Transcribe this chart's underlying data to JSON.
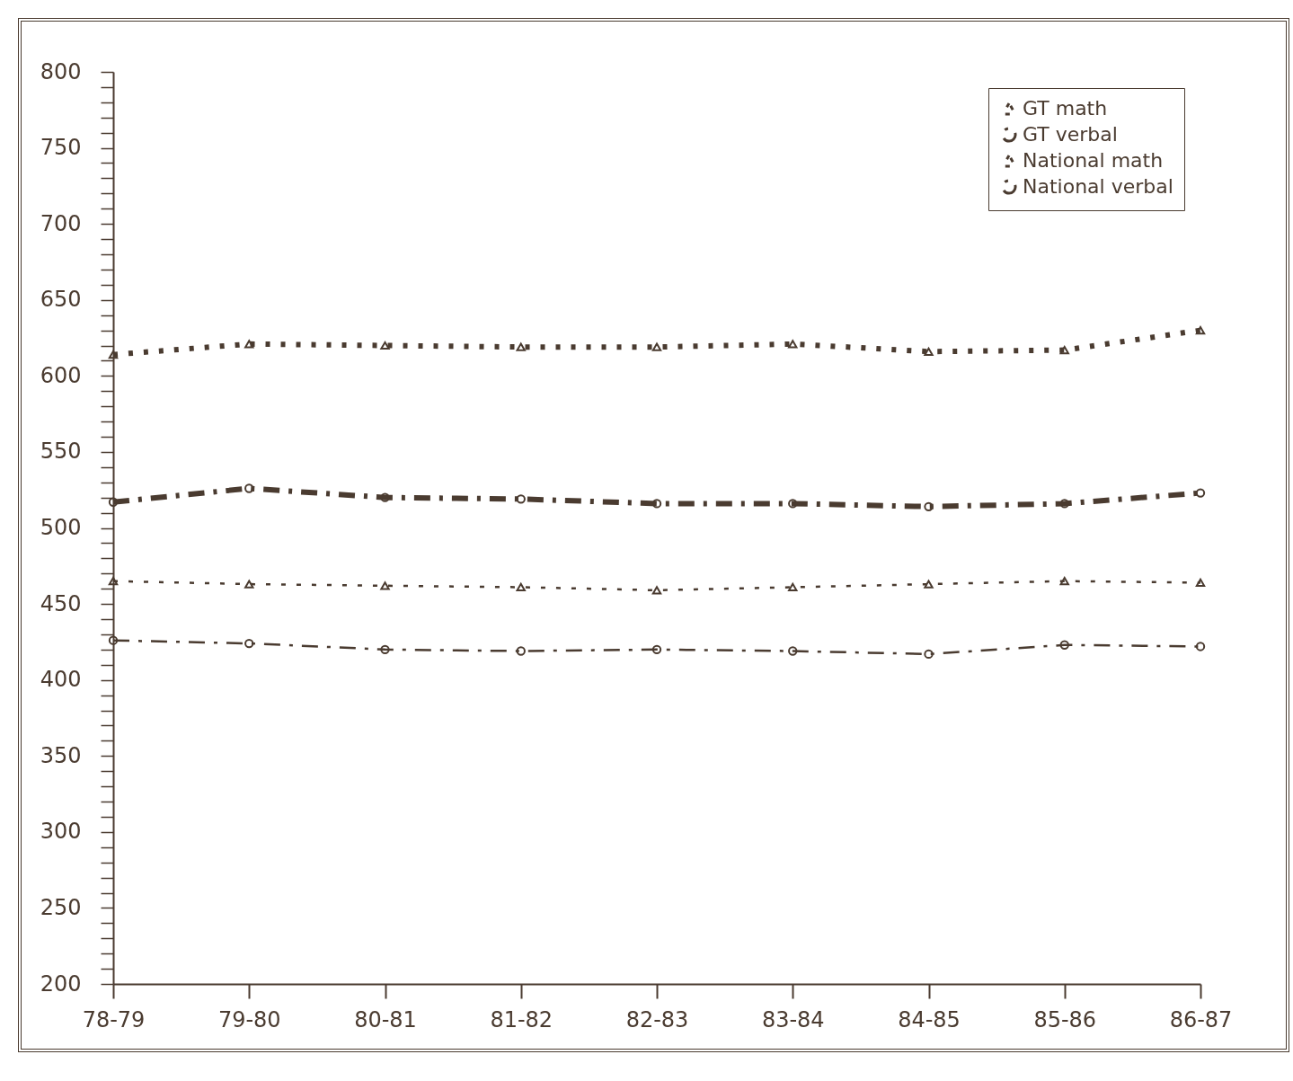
{
  "chart_data": {
    "type": "line",
    "categories": [
      "78-79",
      "79-80",
      "80-81",
      "81-82",
      "82-83",
      "83-84",
      "84-85",
      "85-86",
      "86-87"
    ],
    "series": [
      {
        "name": "GT math",
        "color": "#4a3b30",
        "line_style": "dotted",
        "marker": "triangle",
        "values": [
          614,
          621,
          620,
          619,
          619,
          621,
          616,
          617,
          630
        ]
      },
      {
        "name": "GT verbal",
        "color": "#4a3b30",
        "line_style": "dashed",
        "marker": "circle",
        "values": [
          517,
          526,
          520,
          519,
          516,
          516,
          514,
          516,
          523
        ]
      },
      {
        "name": "National math",
        "color": "#4a3b30",
        "line_style": "dotted",
        "marker": "triangle",
        "values": [
          465,
          463,
          462,
          461,
          459,
          461,
          463,
          465,
          464
        ]
      },
      {
        "name": "National verbal",
        "color": "#4a3b30",
        "line_style": "dashed",
        "marker": "circle",
        "values": [
          426,
          424,
          420,
          419,
          420,
          419,
          417,
          423,
          422
        ]
      }
    ],
    "ylim": [
      200,
      800
    ],
    "yticks": [
      200,
      {
        "value": 210,
        "label": null
      },
      {
        "value": 220,
        "label": null
      },
      {
        "value": 230,
        "label": null
      },
      {
        "value": 240,
        "label": null
      },
      250,
      {
        "value": 260,
        "label": null
      },
      {
        "value": 270,
        "label": null
      },
      {
        "value": 280,
        "label": null
      },
      {
        "value": 290,
        "label": null
      },
      300,
      {
        "value": 310,
        "label": null
      },
      {
        "value": 320,
        "label": null
      },
      {
        "value": 330,
        "label": null
      },
      {
        "value": 340,
        "label": null
      },
      350,
      {
        "value": 360,
        "label": null
      },
      {
        "value": 370,
        "label": null
      },
      {
        "value": 380,
        "label": null
      },
      {
        "value": 390,
        "label": null
      },
      400,
      {
        "value": 410,
        "label": null
      },
      {
        "value": 420,
        "label": null
      },
      {
        "value": 430,
        "label": null
      },
      {
        "value": 440,
        "label": null
      },
      450,
      {
        "value": 460,
        "label": null
      },
      {
        "value": 470,
        "label": null
      },
      {
        "value": 480,
        "label": null
      },
      {
        "value": 490,
        "label": null
      },
      500,
      {
        "value": 510,
        "label": null
      },
      {
        "value": 520,
        "label": null
      },
      {
        "value": 530,
        "label": null
      },
      {
        "value": 540,
        "label": null
      },
      550,
      {
        "value": 560,
        "label": null
      },
      {
        "value": 570,
        "label": null
      },
      {
        "value": 580,
        "label": null
      },
      {
        "value": 590,
        "label": null
      },
      600,
      {
        "value": 610,
        "label": null
      },
      {
        "value": 620,
        "label": null
      },
      {
        "value": 630,
        "label": null
      },
      {
        "value": 640,
        "label": null
      },
      650,
      {
        "value": 660,
        "label": null
      },
      {
        "value": 670,
        "label": null
      },
      {
        "value": 680,
        "label": null
      },
      {
        "value": 690,
        "label": null
      },
      700,
      {
        "value": 710,
        "label": null
      },
      {
        "value": 720,
        "label": null
      },
      {
        "value": 730,
        "label": null
      },
      {
        "value": 740,
        "label": null
      },
      750,
      {
        "value": 760,
        "label": null
      },
      {
        "value": 770,
        "label": null
      },
      {
        "value": 780,
        "label": null
      },
      {
        "value": 790,
        "label": null
      },
      800
    ],
    "grid": false,
    "legend": "top right"
  }
}
